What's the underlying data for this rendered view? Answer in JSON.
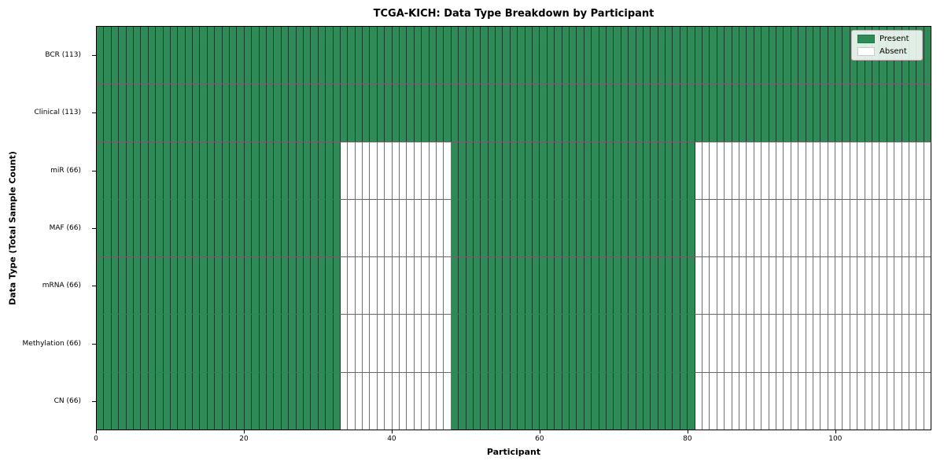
{
  "chart_data": {
    "type": "heatmap",
    "title": "TCGA-KICH: Data Type Breakdown by Participant",
    "xlabel": "Participant",
    "ylabel": "Data Type (Total Sample Count)",
    "n_participants": 113,
    "x_ticks": [
      0,
      20,
      40,
      60,
      80,
      100
    ],
    "colors": {
      "present": "#2e8b57",
      "absent": "#ffffff"
    },
    "legend": [
      {
        "label": "Present",
        "state": "present"
      },
      {
        "label": "Absent",
        "state": "absent"
      }
    ],
    "legend_position": "upper right",
    "grid": "cell-borders",
    "rows": [
      {
        "label": "BCR (113)",
        "data_type": "BCR",
        "total_sample_count": 113,
        "present_ranges": [
          [
            0,
            112
          ]
        ]
      },
      {
        "label": "Clinical (113)",
        "data_type": "Clinical",
        "total_sample_count": 113,
        "present_ranges": [
          [
            0,
            112
          ]
        ]
      },
      {
        "label": "miR (66)",
        "data_type": "miR",
        "total_sample_count": 66,
        "present_ranges": [
          [
            0,
            32
          ],
          [
            48,
            80
          ]
        ]
      },
      {
        "label": "MAF (66)",
        "data_type": "MAF",
        "total_sample_count": 66,
        "present_ranges": [
          [
            0,
            32
          ],
          [
            48,
            80
          ]
        ]
      },
      {
        "label": "mRNA (66)",
        "data_type": "mRNA",
        "total_sample_count": 66,
        "present_ranges": [
          [
            0,
            32
          ],
          [
            48,
            80
          ]
        ]
      },
      {
        "label": "Methylation (66)",
        "data_type": "Methylation",
        "total_sample_count": 66,
        "present_ranges": [
          [
            0,
            32
          ],
          [
            48,
            80
          ]
        ]
      },
      {
        "label": "CN (66)",
        "data_type": "CN",
        "total_sample_count": 66,
        "present_ranges": [
          [
            0,
            32
          ],
          [
            48,
            80
          ]
        ]
      }
    ]
  }
}
